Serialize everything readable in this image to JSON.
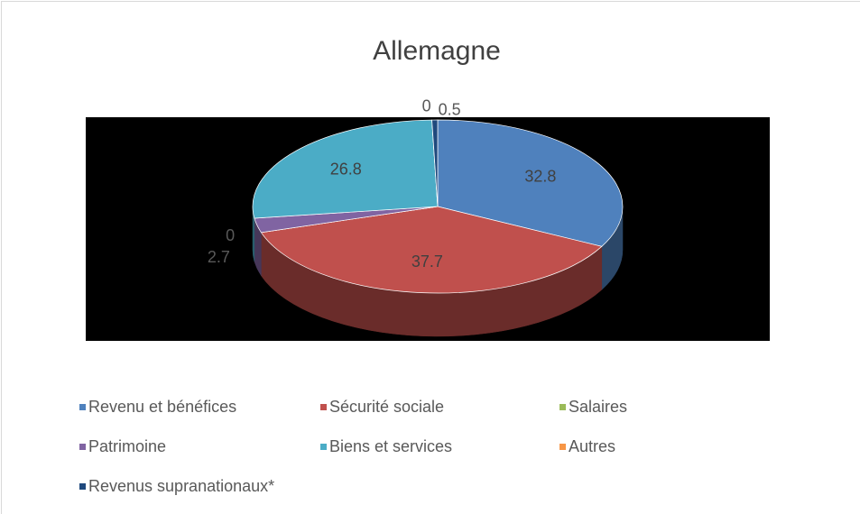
{
  "chart_data": {
    "type": "pie",
    "title": "Allemagne",
    "categories": [
      "Revenu et bénéfices",
      "Sécurité sociale",
      "Salaires",
      "Patrimoine",
      "Biens et services",
      "Autres",
      "Revenus supranationaux*"
    ],
    "values": [
      32.8,
      37.7,
      0,
      2.7,
      26.8,
      0,
      0.5
    ],
    "colors": [
      "#4f81bd",
      "#c0504d",
      "#9bbb59",
      "#8064a2",
      "#4bacc6",
      "#f79646",
      "#1f497d"
    ],
    "legend": "bottom"
  }
}
